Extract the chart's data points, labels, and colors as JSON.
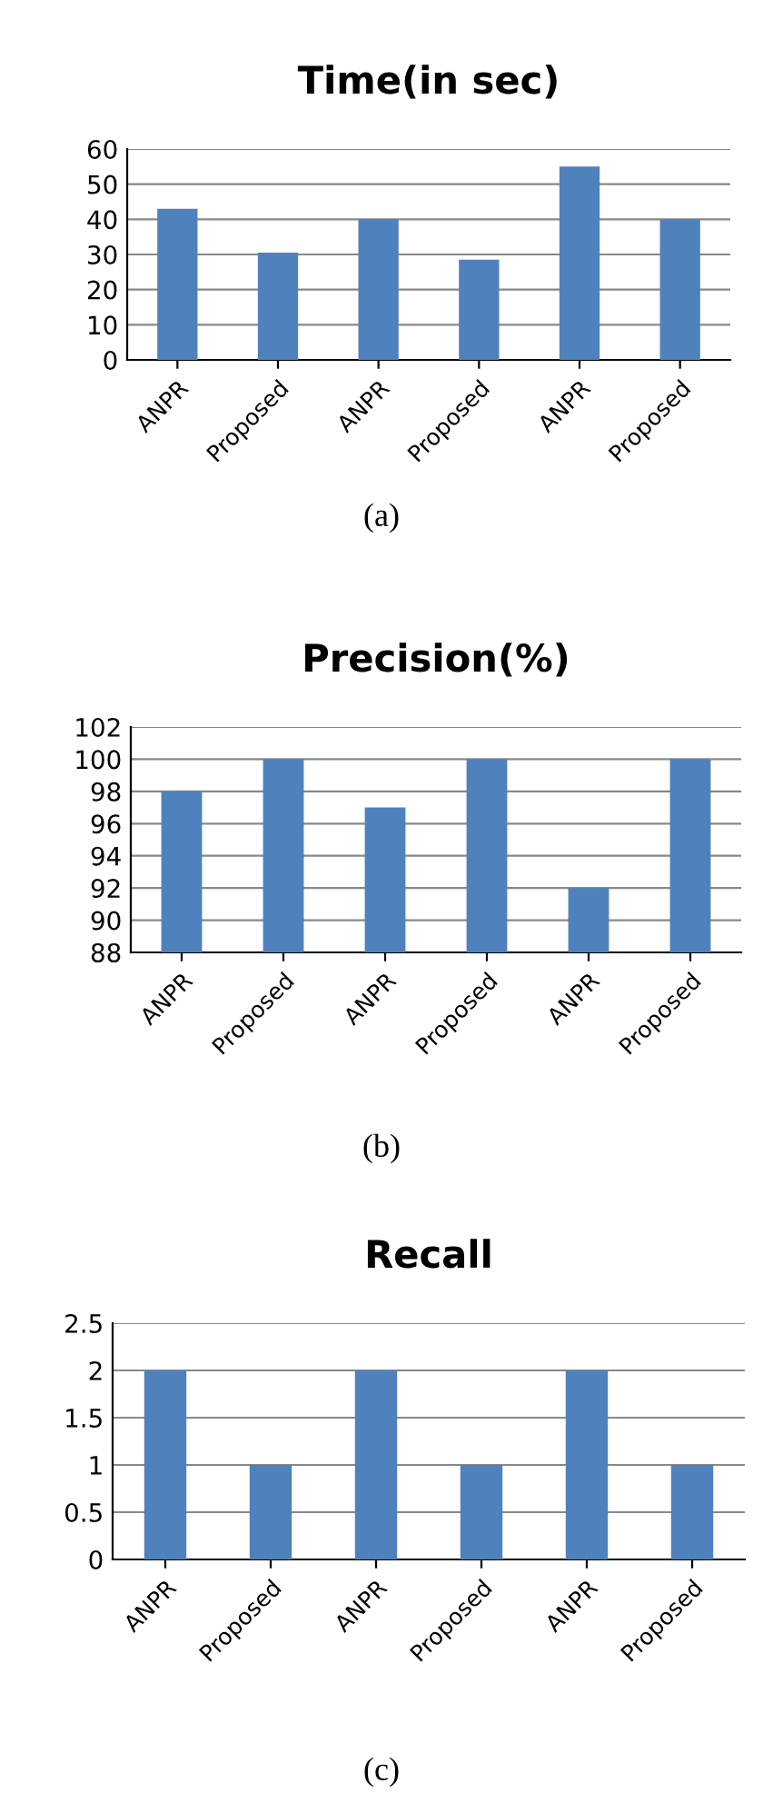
{
  "chart_data": [
    {
      "type": "bar",
      "title": "Time(in sec)",
      "categories": [
        "ANPR",
        "Proposed",
        "ANPR",
        "Proposed",
        "ANPR",
        "Proposed"
      ],
      "values": [
        43,
        30.5,
        40,
        28.5,
        55,
        40
      ],
      "color": "#4f81bd",
      "ylim": [
        0,
        60
      ],
      "yticks": [
        0,
        10,
        20,
        30,
        40,
        50,
        60
      ],
      "grid": "y",
      "annotations": [
        "(a)"
      ]
    },
    {
      "type": "bar",
      "title": "Precision(%)",
      "categories": [
        "ANPR",
        "Proposed",
        "ANPR",
        "Proposed",
        "ANPR",
        "Proposed"
      ],
      "values": [
        98,
        100,
        97,
        100,
        92,
        100
      ],
      "color": "#4f81bd",
      "ylim": [
        88,
        102
      ],
      "yticks": [
        88,
        90,
        92,
        94,
        96,
        98,
        100,
        102
      ],
      "grid": "y",
      "annotations": [
        "(b)"
      ]
    },
    {
      "type": "bar",
      "title": "Recall",
      "categories": [
        "ANPR",
        "Proposed",
        "ANPR",
        "Proposed",
        "ANPR",
        "Proposed"
      ],
      "values": [
        2,
        1,
        2,
        1,
        2,
        1
      ],
      "color": "#4f81bd",
      "ylim": [
        0,
        2.5
      ],
      "yticks": [
        0,
        0.5,
        1,
        1.5,
        2,
        2.5
      ],
      "grid": "y",
      "annotations": [
        "(c)"
      ]
    }
  ]
}
